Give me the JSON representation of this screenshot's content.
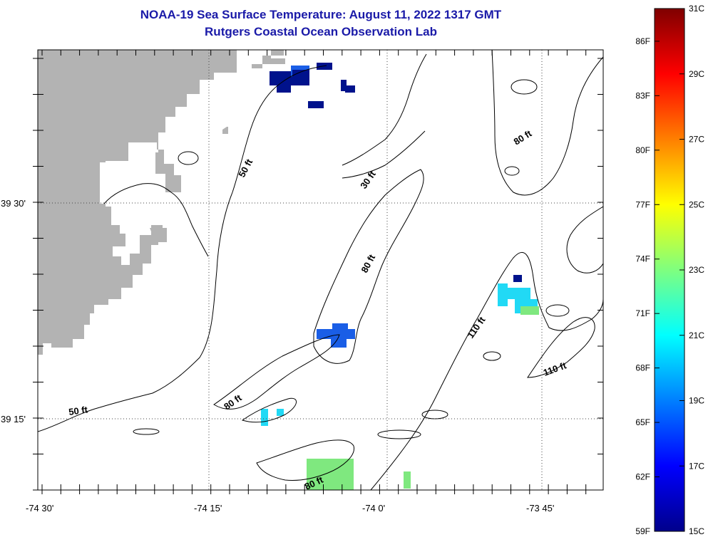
{
  "title": {
    "line1": "NOAA-19 Sea Surface Temperature:  August 11, 2022 1317 GMT",
    "line2": "Rutgers Coastal Ocean Observation Lab"
  },
  "x_ticks": [
    "-74 30'",
    "-74 15'",
    "-74 0'",
    "-73 45'"
  ],
  "y_ticks": [
    "39 30'",
    "39 15'"
  ],
  "contour_labels": [
    "50 ft",
    "30 ft",
    "80 ft",
    "80 ft",
    "110 ft",
    "110 ft",
    "80 ft",
    "50 ft",
    "80 ft"
  ],
  "colorbar": {
    "celsius_labels": [
      "31C",
      "29C",
      "27C",
      "25C",
      "23C",
      "21C",
      "19C",
      "17C",
      "15C"
    ],
    "fahrenheit_labels": [
      "86F",
      "83F",
      "80F",
      "77F",
      "74F",
      "71F",
      "68F",
      "65F",
      "62F",
      "59F"
    ],
    "colors": [
      "#00008b",
      "#0000ff",
      "#007fff",
      "#00ffff",
      "#7fff7f",
      "#ffff00",
      "#ff7f00",
      "#ff0000",
      "#7f0000"
    ]
  },
  "colors": {
    "land": "#b3b3b3",
    "title": "#1a1aa8",
    "sst_deep_blue": "#00128c",
    "sst_blue": "#1a5ee6",
    "sst_cyan": "#21d9f5",
    "sst_green": "#7fe87f"
  }
}
